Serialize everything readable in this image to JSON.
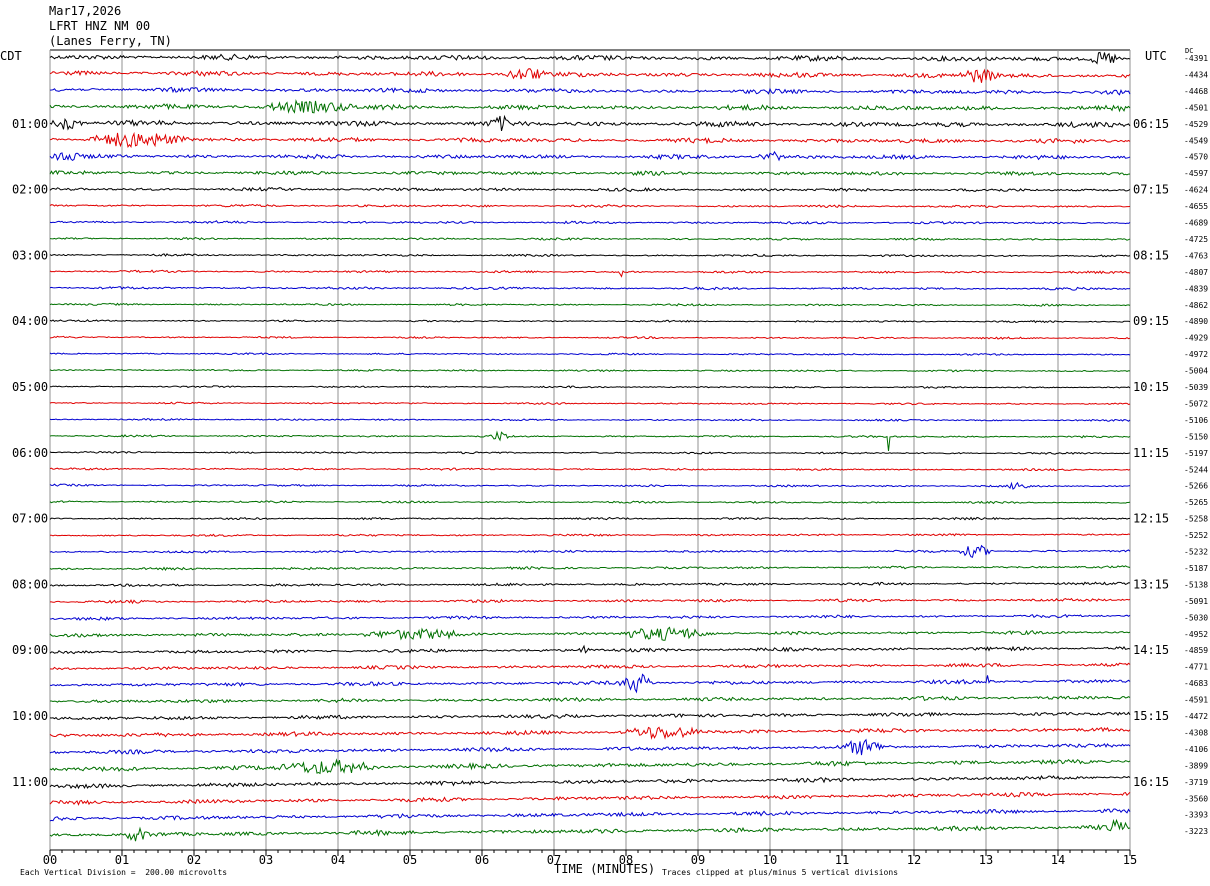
{
  "header": {
    "date": "Mar17,2026",
    "station": "LFRT HNZ NM 00",
    "location": "(Lanes Ferry, TN)"
  },
  "left_tz": "CDT",
  "right_tz": "UTC",
  "dc_label": "DC",
  "xlabel": "TIME (MINUTES)",
  "footer_left": "Each Vertical Division =  200.00 microvolts",
  "footer_right": "Traces clipped at plus/minus 5 vertical divisions",
  "colors": {
    "cycle": [
      "#000000",
      "#e00000",
      "#0000d0",
      "#007000"
    ],
    "grid": "#909090"
  },
  "chart_data": {
    "type": "line",
    "title": "LFRT HNZ NM 00",
    "x_ticks": [
      "00",
      "01",
      "02",
      "03",
      "04",
      "05",
      "06",
      "07",
      "08",
      "09",
      "10",
      "11",
      "12",
      "13",
      "14",
      "15"
    ],
    "xlim": [
      0,
      15
    ],
    "left_labels": [
      "01:00",
      "02:00",
      "03:00",
      "04:00",
      "05:00",
      "06:00",
      "07:00",
      "08:00",
      "09:00",
      "10:00",
      "11:00"
    ],
    "right_labels": [
      "06:15",
      "07:15",
      "08:15",
      "09:15",
      "10:15",
      "11:15",
      "12:15",
      "13:15",
      "14:15",
      "15:15",
      "16:15"
    ],
    "hour_label_rows": [
      4,
      8,
      12,
      16,
      20,
      24,
      28,
      32,
      36,
      40,
      44
    ],
    "dc_offsets": [
      "-4391",
      "-4434",
      "-4468",
      "-4501",
      "-4529",
      "-4549",
      "-4570",
      "-4597",
      "-4624",
      "-4655",
      "-4689",
      "-4725",
      "-4763",
      "-4807",
      "-4839",
      "-4862",
      "-4890",
      "-4929",
      "-4972",
      "-5004",
      "-5039",
      "-5072",
      "-5106",
      "-5150",
      "-5197",
      "-5244",
      "-5266",
      "-5265",
      "-5258",
      "-5252",
      "-5232",
      "-5187",
      "-5138",
      "-5091",
      "-5030",
      "-4952",
      "-4859",
      "-4771",
      "-4683",
      "-4591",
      "-4472",
      "-4308",
      "-4106",
      "-3899",
      "-3719",
      "-3560",
      "-3393",
      "-3223"
    ],
    "noise_levels": [
      3.0,
      2.8,
      2.6,
      2.8,
      3.0,
      2.6,
      2.4,
      2.2,
      1.8,
      1.4,
      1.4,
      1.2,
      1.2,
      1.3,
      1.4,
      1.1,
      1.0,
      1.0,
      1.0,
      1.0,
      1.0,
      1.0,
      1.0,
      1.1,
      1.1,
      1.1,
      1.1,
      1.1,
      1.2,
      1.2,
      1.3,
      1.4,
      1.5,
      1.6,
      1.7,
      2.0,
      2.0,
      2.0,
      2.2,
      2.2,
      2.2,
      2.4,
      2.4,
      2.6,
      2.4,
      2.4,
      2.4,
      2.6
    ],
    "drift": [
      -2,
      -3,
      -3,
      -2,
      -2,
      -2,
      -1,
      -1,
      -1,
      -1,
      -1,
      -1,
      -1,
      -1,
      -1,
      -1,
      -1,
      -1,
      -1,
      -1,
      -1,
      -1,
      -1,
      -1,
      -1,
      -1,
      -1,
      -1,
      0,
      1,
      1,
      2,
      2,
      2,
      3,
      3,
      4,
      4,
      4,
      4,
      5,
      6,
      7,
      8,
      9,
      9,
      8,
      8
    ],
    "events": [
      {
        "row": 0,
        "start": 14.4,
        "dur": 0.5,
        "amp": 6
      },
      {
        "row": 1,
        "start": 6.3,
        "dur": 0.6,
        "amp": 6
      },
      {
        "row": 1,
        "start": 12.6,
        "dur": 0.6,
        "amp": 6
      },
      {
        "row": 3,
        "start": 2.9,
        "dur": 1.4,
        "amp": 5
      },
      {
        "row": 4,
        "start": 0.0,
        "dur": 0.5,
        "amp": 6
      },
      {
        "row": 4,
        "start": 6.1,
        "dur": 0.3,
        "amp": 6
      },
      {
        "row": 5,
        "start": 0.5,
        "dur": 1.5,
        "amp": 6
      },
      {
        "row": 6,
        "start": 0.0,
        "dur": 0.4,
        "amp": 6
      },
      {
        "row": 6,
        "start": 9.8,
        "dur": 0.4,
        "amp": 5
      },
      {
        "row": 13,
        "start": 7.9,
        "dur": 0.1,
        "amp": 5
      },
      {
        "row": 23,
        "start": 6.1,
        "dur": 0.3,
        "amp": 4
      },
      {
        "row": 23,
        "start": 11.63,
        "dur": 0.03,
        "amp": 24
      },
      {
        "row": 26,
        "start": 13.3,
        "dur": 0.3,
        "amp": 4
      },
      {
        "row": 30,
        "start": 12.6,
        "dur": 0.5,
        "amp": 6
      },
      {
        "row": 35,
        "start": 4.2,
        "dur": 1.6,
        "amp": 4
      },
      {
        "row": 35,
        "start": 7.8,
        "dur": 1.5,
        "amp": 5
      },
      {
        "row": 36,
        "start": 7.3,
        "dur": 0.2,
        "amp": 5
      },
      {
        "row": 38,
        "start": 7.9,
        "dur": 0.5,
        "amp": 9
      },
      {
        "row": 38,
        "start": 13.0,
        "dur": 0.05,
        "amp": 12
      },
      {
        "row": 41,
        "start": 7.9,
        "dur": 1.2,
        "amp": 5
      },
      {
        "row": 42,
        "start": 11.0,
        "dur": 0.6,
        "amp": 6
      },
      {
        "row": 43,
        "start": 3.1,
        "dur": 1.5,
        "amp": 6
      },
      {
        "row": 47,
        "start": 1.0,
        "dur": 0.4,
        "amp": 5
      },
      {
        "row": 47,
        "start": 14.6,
        "dur": 0.4,
        "amp": 5
      }
    ]
  }
}
